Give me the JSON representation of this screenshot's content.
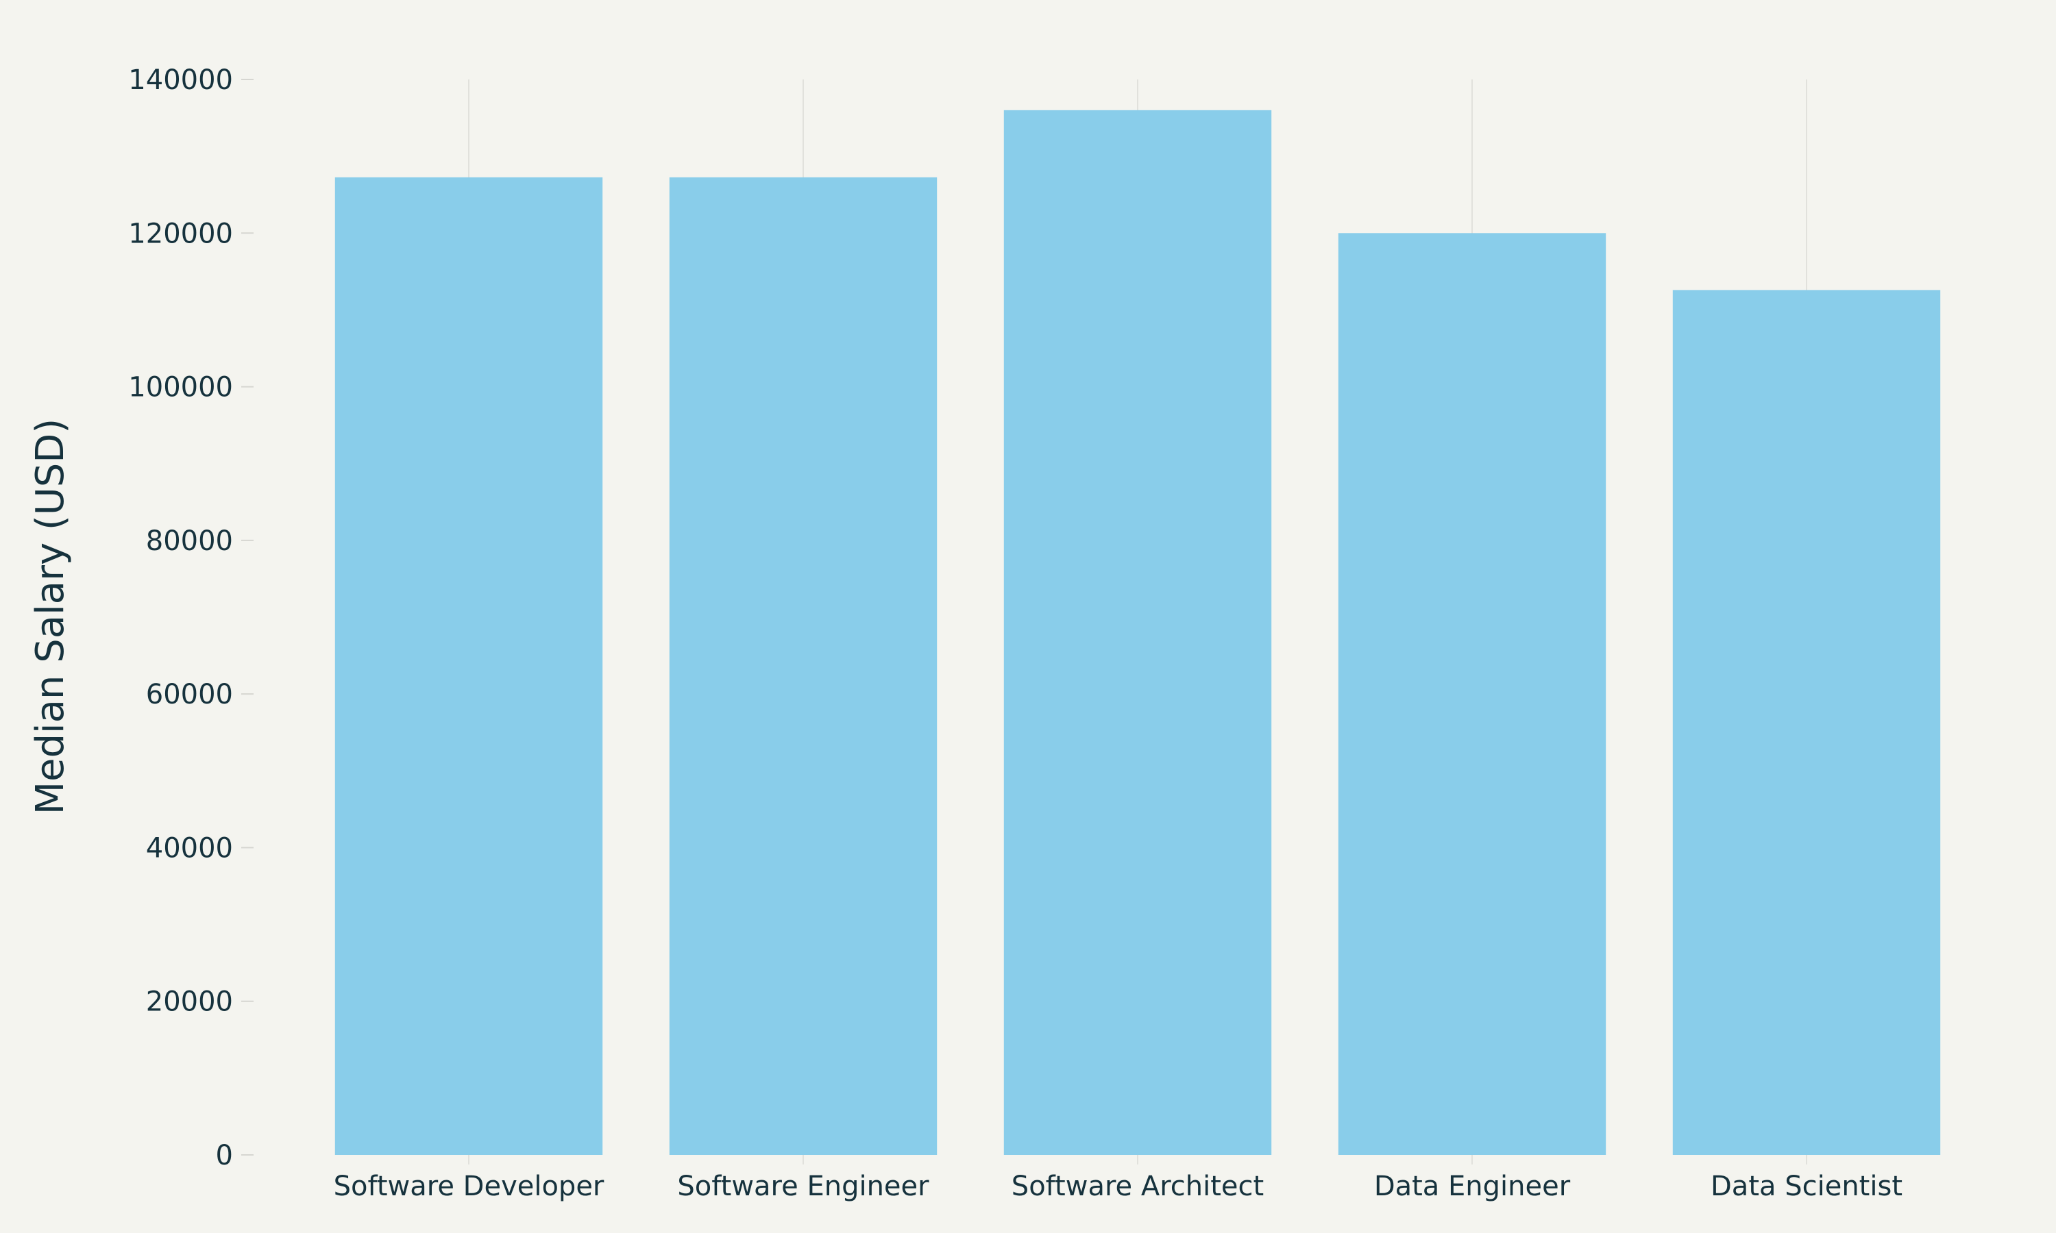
{
  "chart_data": {
    "type": "bar",
    "title": "",
    "xlabel": "",
    "ylabel": "Median Salary (USD)",
    "categories": [
      "Software Developer",
      "Software Engineer",
      "Software Architect",
      "Data Engineer",
      "Data Scientist"
    ],
    "values": [
      127260,
      127260,
      136000,
      120000,
      112590
    ],
    "ylim": [
      0,
      140000
    ],
    "yticks": [
      0,
      20000,
      40000,
      60000,
      80000,
      100000,
      120000,
      140000
    ],
    "grid": "vertical",
    "bar_color": "#89cdea",
    "background_color": "#f4f4ef",
    "text_color": "#16323d"
  }
}
